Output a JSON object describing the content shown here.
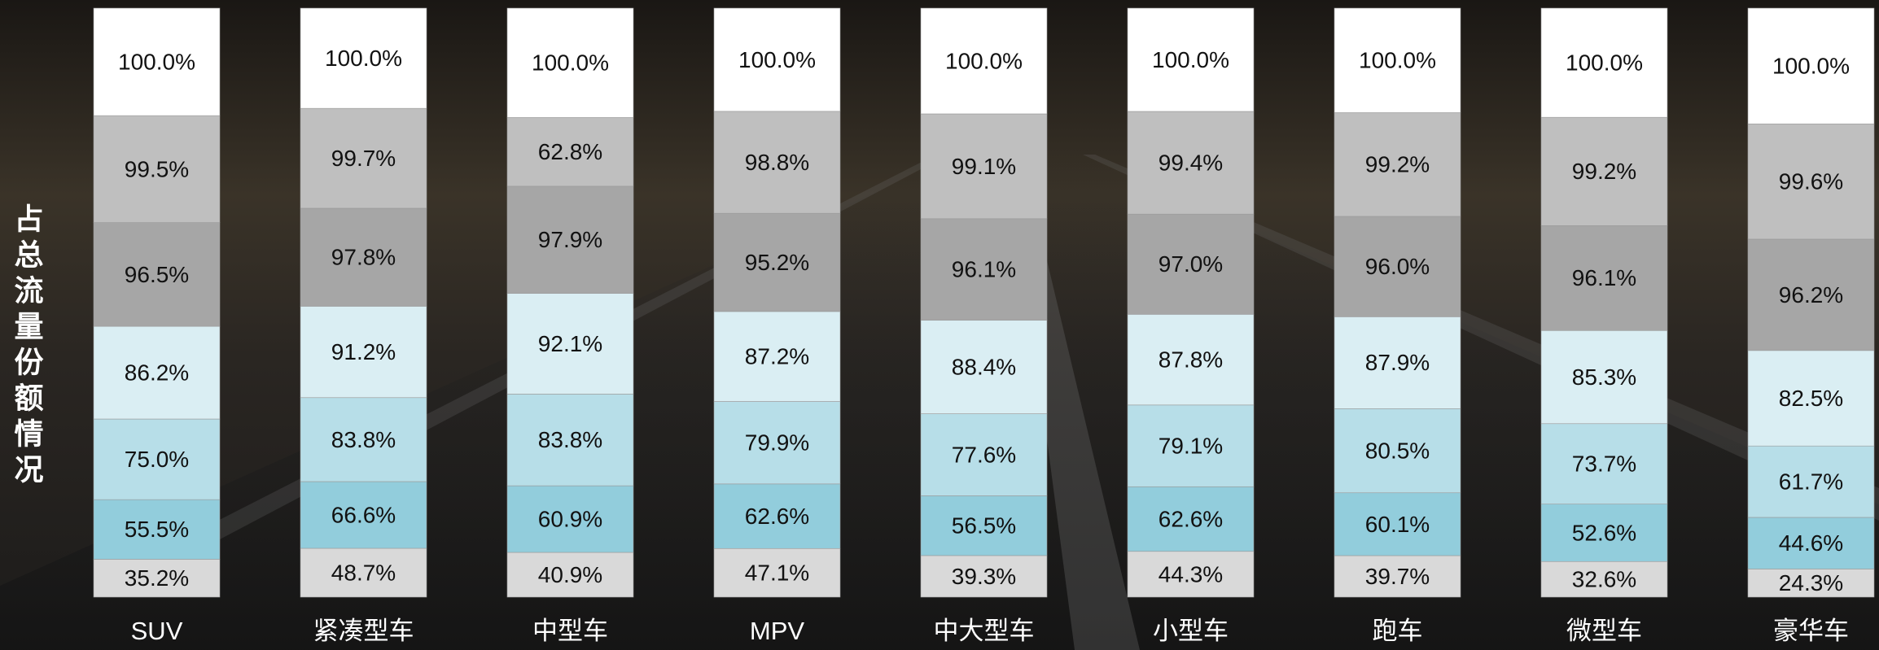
{
  "chart_data": {
    "type": "stacked_bar",
    "y_label": "占总流量份额情况",
    "categories": [
      "SUV",
      "紧凑型车",
      "中型车",
      "MPV",
      "中大型车",
      "小型车",
      "跑车",
      "微型车",
      "豪华车"
    ],
    "series": [
      {
        "color": "#d9d9d9",
        "values": [
          35.2,
          48.7,
          40.9,
          47.1,
          39.3,
          44.3,
          39.7,
          32.6,
          24.3
        ],
        "value_labels": [
          "35.2%",
          "48.7%",
          "40.9%",
          "47.1%",
          "39.3%",
          "44.3%",
          "39.7%",
          "32.6%",
          "24.3%"
        ]
      },
      {
        "color": "#92cddc",
        "values": [
          55.5,
          66.6,
          60.9,
          62.6,
          56.5,
          62.6,
          60.1,
          52.6,
          44.6
        ],
        "value_labels": [
          "55.5%",
          "66.6%",
          "60.9%",
          "62.6%",
          "56.5%",
          "62.6%",
          "60.1%",
          "52.6%",
          "44.6%"
        ]
      },
      {
        "color": "#b7dee8",
        "values": [
          75.0,
          83.8,
          83.8,
          79.9,
          77.6,
          79.1,
          80.5,
          73.7,
          61.7
        ],
        "value_labels": [
          "75.0%",
          "83.8%",
          "83.8%",
          "79.9%",
          "77.6%",
          "79.1%",
          "80.5%",
          "73.7%",
          "61.7%"
        ]
      },
      {
        "color": "#daeef3",
        "values": [
          86.2,
          91.2,
          92.1,
          87.2,
          88.4,
          87.8,
          87.9,
          85.3,
          82.5
        ],
        "value_labels": [
          "86.2%",
          "91.2%",
          "92.1%",
          "87.2%",
          "88.4%",
          "87.8%",
          "87.9%",
          "85.3%",
          "82.5%"
        ]
      },
      {
        "color": "#a6a6a6",
        "values": [
          96.5,
          97.8,
          97.9,
          95.2,
          96.1,
          97.0,
          96.0,
          96.1,
          96.2
        ],
        "value_labels": [
          "96.5%",
          "97.8%",
          "97.9%",
          "95.2%",
          "96.1%",
          "97.0%",
          "96.0%",
          "96.1%",
          "96.2%"
        ]
      },
      {
        "color": "#bfbfbf",
        "values": [
          99.5,
          99.7,
          62.8,
          98.8,
          99.1,
          99.4,
          99.2,
          99.2,
          99.6
        ],
        "value_labels": [
          "99.5%",
          "99.7%",
          "62.8%",
          "98.8%",
          "99.1%",
          "99.4%",
          "99.2%",
          "99.2%",
          "99.6%"
        ]
      },
      {
        "color": "#ffffff",
        "values": [
          100.0,
          100.0,
          100.0,
          100.0,
          100.0,
          100.0,
          100.0,
          100.0,
          100.0
        ],
        "value_labels": [
          "100.0%",
          "100.0%",
          "100.0%",
          "100.0%",
          "100.0%",
          "100.0%",
          "100.0%",
          "100.0%",
          "100.0%"
        ]
      }
    ]
  }
}
